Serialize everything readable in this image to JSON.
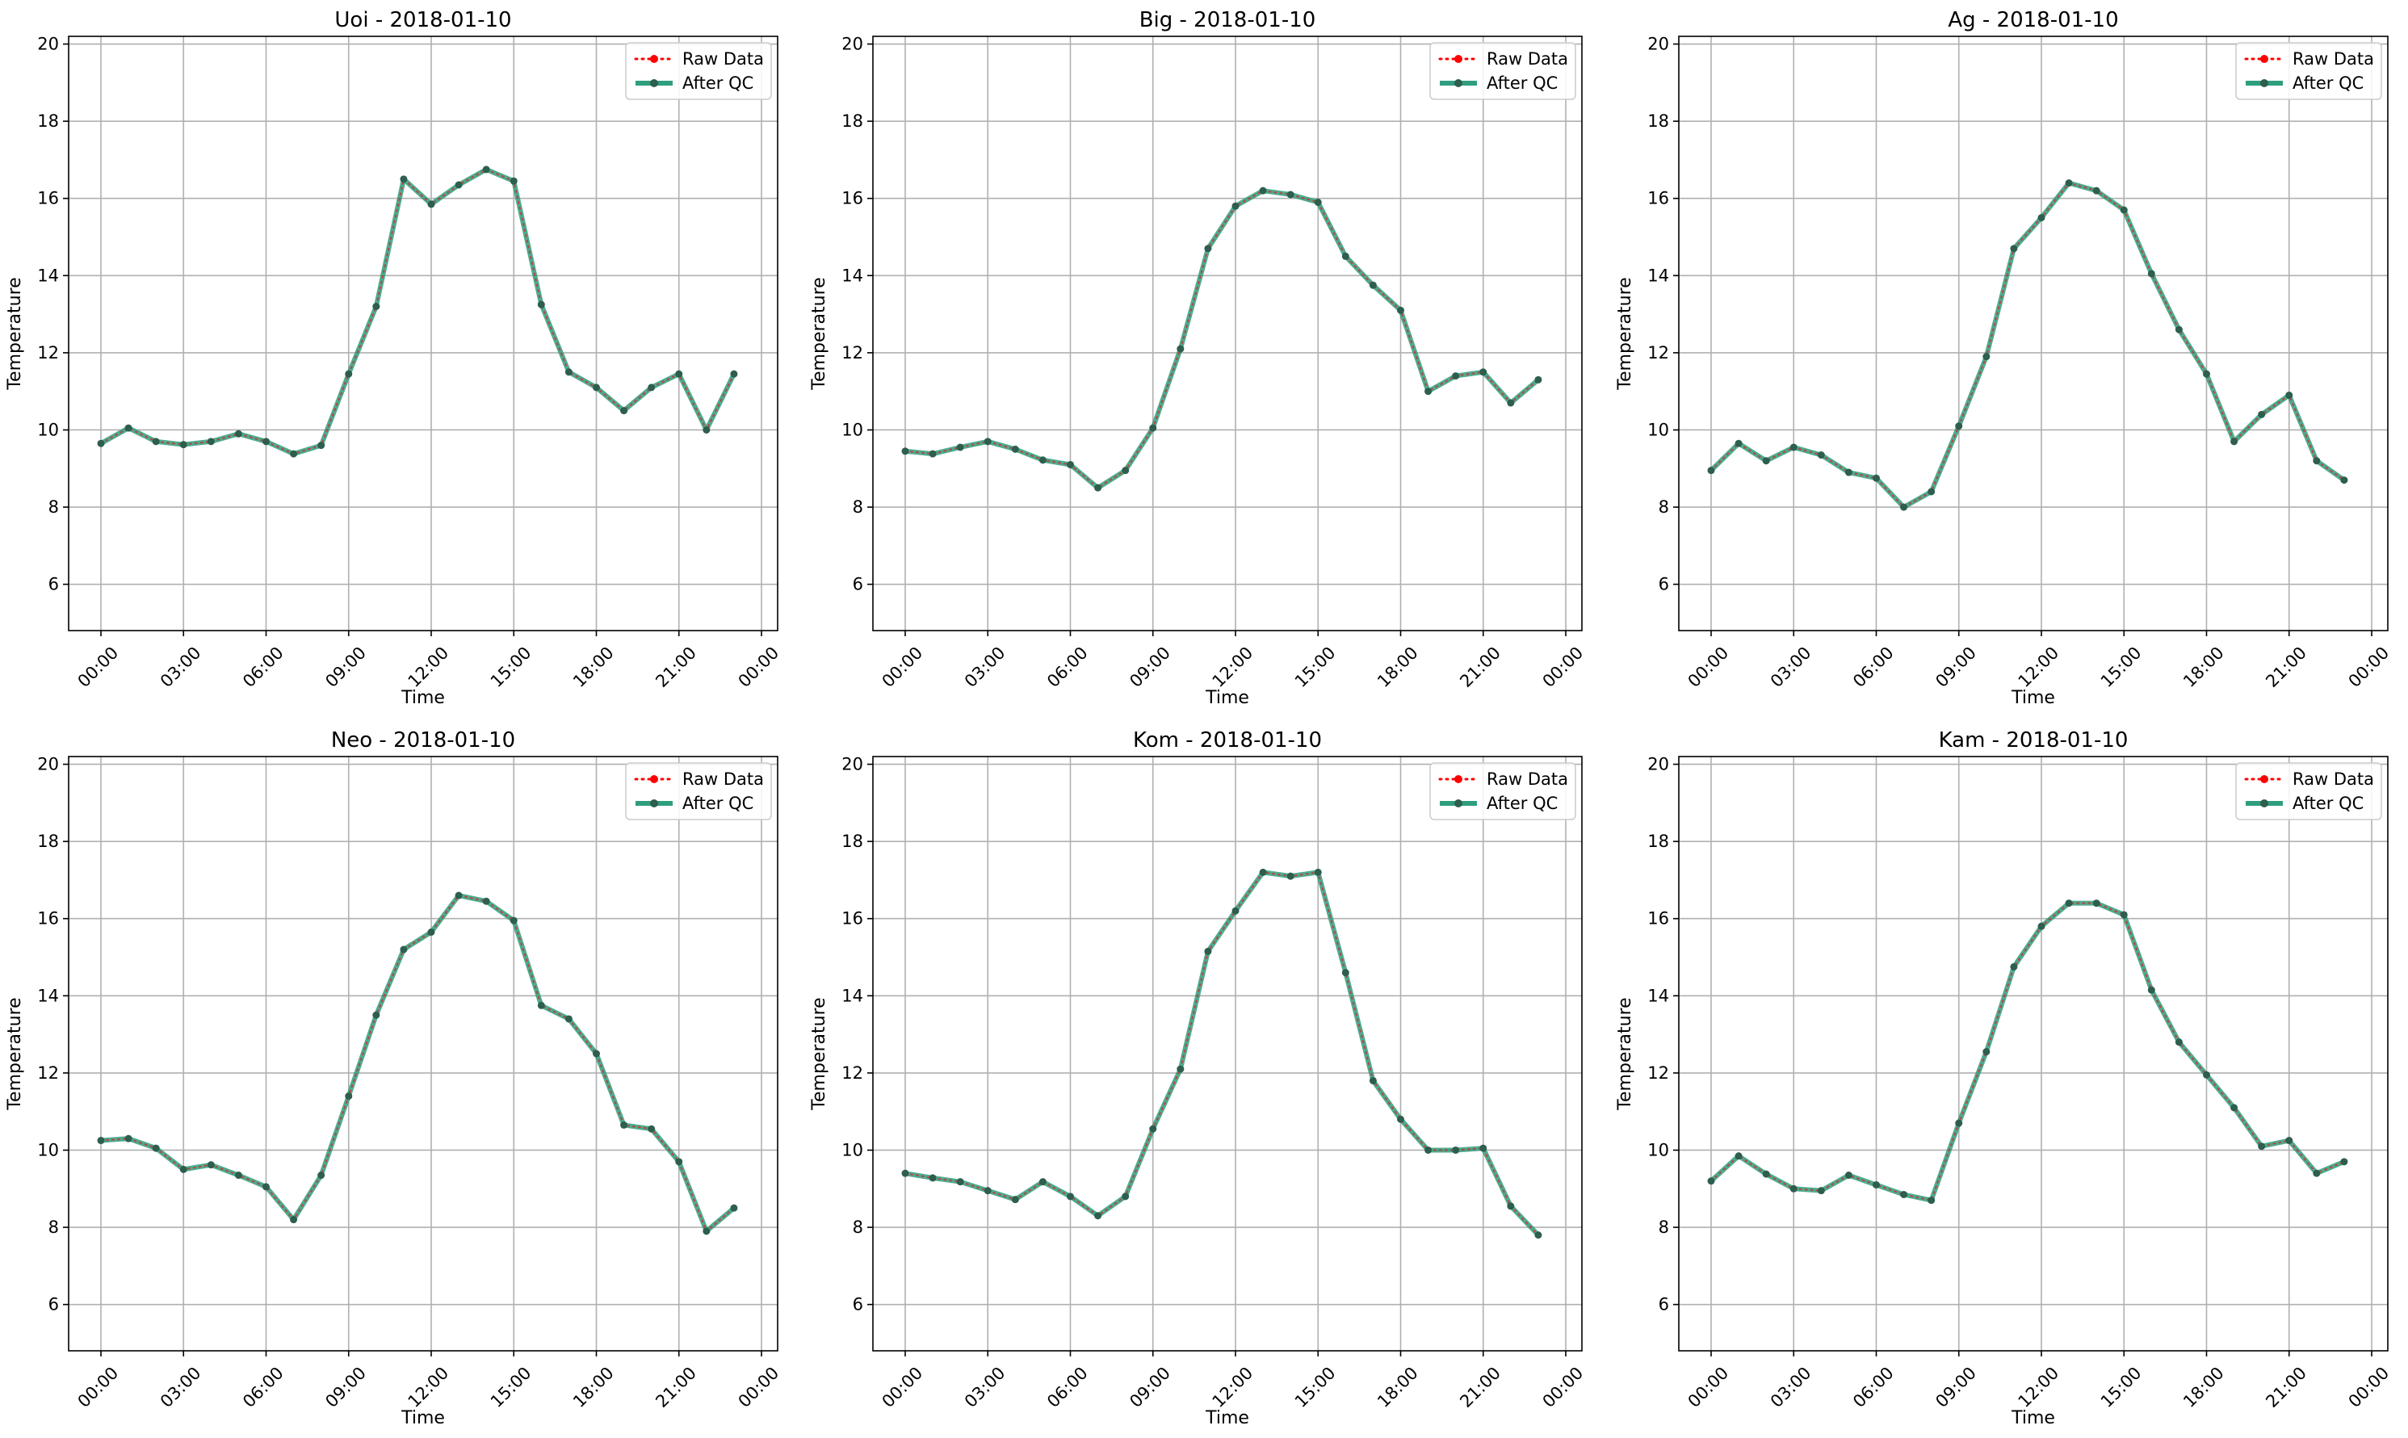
{
  "chart_data": [
    {
      "type": "line",
      "title": "Uoi - 2018-01-10",
      "xlabel": "Time",
      "ylabel": "Temperature",
      "x_tick_labels": [
        "00:00",
        "03:00",
        "06:00",
        "09:00",
        "12:00",
        "15:00",
        "18:00",
        "21:00",
        "00:00"
      ],
      "y_ticks": [
        6,
        8,
        10,
        12,
        14,
        16,
        18,
        20
      ],
      "ylim": [
        4.8,
        20.2
      ],
      "grid": true,
      "legend_position": "top-right",
      "x": [
        "00:00",
        "01:00",
        "02:00",
        "03:00",
        "04:00",
        "05:00",
        "06:00",
        "07:00",
        "08:00",
        "09:00",
        "10:00",
        "11:00",
        "12:00",
        "13:00",
        "14:00",
        "15:00",
        "16:00",
        "17:00",
        "18:00",
        "19:00",
        "20:00",
        "21:00",
        "22:00",
        "23:00"
      ],
      "series": [
        {
          "name": "Raw Data",
          "color": "#ff0000",
          "values": [
            9.65,
            10.05,
            9.7,
            9.62,
            9.7,
            9.9,
            9.7,
            9.38,
            9.6,
            11.45,
            13.2,
            16.5,
            15.85,
            16.35,
            16.75,
            16.45,
            13.25,
            11.5,
            11.1,
            10.5,
            11.1,
            11.45,
            10.0,
            11.45
          ]
        },
        {
          "name": "After QC",
          "color": "#2e9e7e",
          "values": [
            9.65,
            10.05,
            9.7,
            9.62,
            9.7,
            9.9,
            9.7,
            9.38,
            9.6,
            11.45,
            13.2,
            16.5,
            15.85,
            16.35,
            16.75,
            16.45,
            13.25,
            11.5,
            11.1,
            10.5,
            11.1,
            11.45,
            10.0,
            11.45
          ]
        }
      ]
    },
    {
      "type": "line",
      "title": "Big - 2018-01-10",
      "xlabel": "Time",
      "ylabel": "Temperature",
      "x_tick_labels": [
        "00:00",
        "03:00",
        "06:00",
        "09:00",
        "12:00",
        "15:00",
        "18:00",
        "21:00",
        "00:00"
      ],
      "y_ticks": [
        6,
        8,
        10,
        12,
        14,
        16,
        18,
        20
      ],
      "ylim": [
        4.8,
        20.2
      ],
      "grid": true,
      "legend_position": "top-right",
      "x": [
        "00:00",
        "01:00",
        "02:00",
        "03:00",
        "04:00",
        "05:00",
        "06:00",
        "07:00",
        "08:00",
        "09:00",
        "10:00",
        "11:00",
        "12:00",
        "13:00",
        "14:00",
        "15:00",
        "16:00",
        "17:00",
        "18:00",
        "19:00",
        "20:00",
        "21:00",
        "22:00",
        "23:00"
      ],
      "series": [
        {
          "name": "Raw Data",
          "color": "#ff0000",
          "values": [
            9.45,
            9.38,
            9.55,
            9.7,
            9.5,
            9.22,
            9.1,
            8.5,
            8.95,
            10.05,
            12.1,
            14.7,
            15.8,
            16.2,
            16.1,
            15.9,
            14.5,
            13.75,
            13.1,
            11.0,
            11.4,
            11.5,
            10.7,
            11.3
          ]
        },
        {
          "name": "After QC",
          "color": "#2e9e7e",
          "values": [
            9.45,
            9.38,
            9.55,
            9.7,
            9.5,
            9.22,
            9.1,
            8.5,
            8.95,
            10.05,
            12.1,
            14.7,
            15.8,
            16.2,
            16.1,
            15.9,
            14.5,
            13.75,
            13.1,
            11.0,
            11.4,
            11.5,
            10.7,
            11.3
          ]
        }
      ]
    },
    {
      "type": "line",
      "title": "Ag - 2018-01-10",
      "xlabel": "Time",
      "ylabel": "Temperature",
      "x_tick_labels": [
        "00:00",
        "03:00",
        "06:00",
        "09:00",
        "12:00",
        "15:00",
        "18:00",
        "21:00",
        "00:00"
      ],
      "y_ticks": [
        6,
        8,
        10,
        12,
        14,
        16,
        18,
        20
      ],
      "ylim": [
        4.8,
        20.2
      ],
      "grid": true,
      "legend_position": "top-right",
      "x": [
        "00:00",
        "01:00",
        "02:00",
        "03:00",
        "04:00",
        "05:00",
        "06:00",
        "07:00",
        "08:00",
        "09:00",
        "10:00",
        "11:00",
        "12:00",
        "13:00",
        "14:00",
        "15:00",
        "16:00",
        "17:00",
        "18:00",
        "19:00",
        "20:00",
        "21:00",
        "22:00",
        "23:00"
      ],
      "series": [
        {
          "name": "Raw Data",
          "color": "#ff0000",
          "values": [
            8.95,
            9.65,
            9.2,
            9.55,
            9.35,
            8.9,
            8.75,
            8.0,
            8.4,
            10.1,
            11.9,
            14.7,
            15.5,
            16.4,
            16.2,
            15.7,
            14.05,
            12.6,
            11.45,
            9.7,
            10.4,
            10.9,
            9.2,
            8.7
          ]
        },
        {
          "name": "After QC",
          "color": "#2e9e7e",
          "values": [
            8.95,
            9.65,
            9.2,
            9.55,
            9.35,
            8.9,
            8.75,
            8.0,
            8.4,
            10.1,
            11.9,
            14.7,
            15.5,
            16.4,
            16.2,
            15.7,
            14.05,
            12.6,
            11.45,
            9.7,
            10.4,
            10.9,
            9.2,
            8.7
          ]
        }
      ]
    },
    {
      "type": "line",
      "title": "Neo - 2018-01-10",
      "xlabel": "Time",
      "ylabel": "Temperature",
      "x_tick_labels": [
        "00:00",
        "03:00",
        "06:00",
        "09:00",
        "12:00",
        "15:00",
        "18:00",
        "21:00",
        "00:00"
      ],
      "y_ticks": [
        6,
        8,
        10,
        12,
        14,
        16,
        18,
        20
      ],
      "ylim": [
        4.8,
        20.2
      ],
      "grid": true,
      "legend_position": "top-right",
      "x": [
        "00:00",
        "01:00",
        "02:00",
        "03:00",
        "04:00",
        "05:00",
        "06:00",
        "07:00",
        "08:00",
        "09:00",
        "10:00",
        "11:00",
        "12:00",
        "13:00",
        "14:00",
        "15:00",
        "16:00",
        "17:00",
        "18:00",
        "19:00",
        "20:00",
        "21:00",
        "22:00",
        "23:00"
      ],
      "series": [
        {
          "name": "Raw Data",
          "color": "#ff0000",
          "values": [
            10.25,
            10.3,
            10.05,
            9.5,
            9.62,
            9.35,
            9.05,
            8.2,
            9.35,
            11.4,
            13.5,
            15.2,
            15.65,
            16.6,
            16.45,
            15.95,
            13.75,
            13.4,
            12.5,
            10.65,
            10.55,
            9.7,
            7.9,
            8.5
          ]
        },
        {
          "name": "After QC",
          "color": "#2e9e7e",
          "values": [
            10.25,
            10.3,
            10.05,
            9.5,
            9.62,
            9.35,
            9.05,
            8.2,
            9.35,
            11.4,
            13.5,
            15.2,
            15.65,
            16.6,
            16.45,
            15.95,
            13.75,
            13.4,
            12.5,
            10.65,
            10.55,
            9.7,
            7.9,
            8.5
          ]
        }
      ]
    },
    {
      "type": "line",
      "title": "Kom - 2018-01-10",
      "xlabel": "Time",
      "ylabel": "Temperature",
      "x_tick_labels": [
        "00:00",
        "03:00",
        "06:00",
        "09:00",
        "12:00",
        "15:00",
        "18:00",
        "21:00",
        "00:00"
      ],
      "y_ticks": [
        6,
        8,
        10,
        12,
        14,
        16,
        18,
        20
      ],
      "ylim": [
        4.8,
        20.2
      ],
      "grid": true,
      "legend_position": "top-right",
      "x": [
        "00:00",
        "01:00",
        "02:00",
        "03:00",
        "04:00",
        "05:00",
        "06:00",
        "07:00",
        "08:00",
        "09:00",
        "10:00",
        "11:00",
        "12:00",
        "13:00",
        "14:00",
        "15:00",
        "16:00",
        "17:00",
        "18:00",
        "19:00",
        "20:00",
        "21:00",
        "22:00",
        "23:00"
      ],
      "series": [
        {
          "name": "Raw Data",
          "color": "#ff0000",
          "values": [
            9.4,
            9.28,
            9.18,
            8.95,
            8.72,
            9.18,
            8.8,
            8.3,
            8.8,
            10.55,
            12.1,
            15.15,
            16.2,
            17.2,
            17.1,
            17.2,
            14.6,
            11.8,
            10.8,
            10.0,
            10.0,
            10.05,
            8.55,
            7.8
          ]
        },
        {
          "name": "After QC",
          "color": "#2e9e7e",
          "values": [
            9.4,
            9.28,
            9.18,
            8.95,
            8.72,
            9.18,
            8.8,
            8.3,
            8.8,
            10.55,
            12.1,
            15.15,
            16.2,
            17.2,
            17.1,
            17.2,
            14.6,
            11.8,
            10.8,
            10.0,
            10.0,
            10.05,
            8.55,
            7.8
          ]
        }
      ]
    },
    {
      "type": "line",
      "title": "Kam - 2018-01-10",
      "xlabel": "Time",
      "ylabel": "Temperature",
      "x_tick_labels": [
        "00:00",
        "03:00",
        "06:00",
        "09:00",
        "12:00",
        "15:00",
        "18:00",
        "21:00",
        "00:00"
      ],
      "y_ticks": [
        6,
        8,
        10,
        12,
        14,
        16,
        18,
        20
      ],
      "ylim": [
        4.8,
        20.2
      ],
      "grid": true,
      "legend_position": "top-right",
      "x": [
        "00:00",
        "01:00",
        "02:00",
        "03:00",
        "04:00",
        "05:00",
        "06:00",
        "07:00",
        "08:00",
        "09:00",
        "10:00",
        "11:00",
        "12:00",
        "13:00",
        "14:00",
        "15:00",
        "16:00",
        "17:00",
        "18:00",
        "19:00",
        "20:00",
        "21:00",
        "22:00",
        "23:00"
      ],
      "series": [
        {
          "name": "Raw Data",
          "color": "#ff0000",
          "values": [
            9.2,
            9.85,
            9.38,
            9.0,
            8.95,
            9.35,
            9.1,
            8.85,
            8.7,
            10.7,
            12.55,
            14.75,
            15.8,
            16.4,
            16.4,
            16.1,
            14.15,
            12.8,
            11.95,
            11.1,
            10.1,
            10.25,
            9.4,
            9.7
          ]
        },
        {
          "name": "After QC",
          "color": "#2e9e7e",
          "values": [
            9.2,
            9.85,
            9.38,
            9.0,
            8.95,
            9.35,
            9.1,
            8.85,
            8.7,
            10.7,
            12.55,
            14.75,
            15.8,
            16.4,
            16.4,
            16.1,
            14.15,
            12.8,
            11.95,
            11.1,
            10.1,
            10.25,
            9.4,
            9.7
          ]
        }
      ]
    }
  ]
}
